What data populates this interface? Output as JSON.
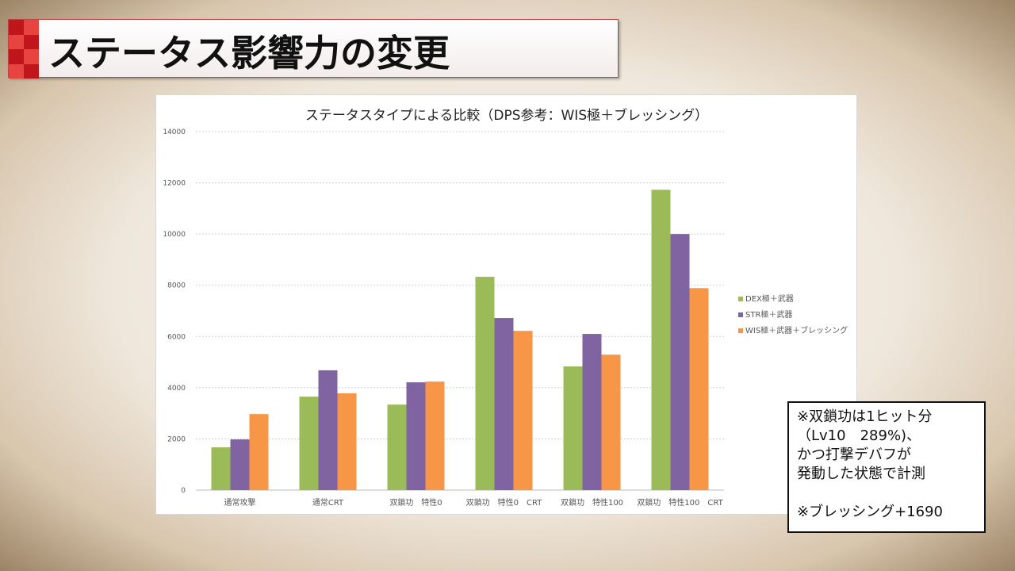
{
  "slide_title": "ステータス影響力の変更",
  "note": {
    "lines": [
      "※双鎖功は1ヒット分",
      "（Lv10　289%)、",
      "かつ打撃デバフが",
      "発動した状態で計測",
      "",
      "※ブレッシング+1690"
    ]
  },
  "chart_data": {
    "type": "bar",
    "title": "ステータスタイプによる比較（DPS参考：WIS極＋ブレッシング）",
    "categories": [
      "通常攻撃",
      "通常CRT",
      "双鎖功　特性0",
      "双鎖功　特性0　CRT",
      "双鎖功　特性100",
      "双鎖功　特性100　CRT"
    ],
    "series": [
      {
        "name": "DEX極＋武器",
        "color": "#9bbb59",
        "values": [
          1670,
          3650,
          3340,
          8330,
          4830,
          11730
        ]
      },
      {
        "name": "STR極＋武器",
        "color": "#8064a2",
        "values": [
          1980,
          4680,
          4210,
          6720,
          6100,
          10000
        ]
      },
      {
        "name": "WIS極＋武器＋ブレッシング",
        "color": "#f79646",
        "values": [
          2970,
          3780,
          4240,
          6220,
          5290,
          7890
        ]
      }
    ],
    "ylim": [
      0,
      14000
    ],
    "yticks": [
      0,
      2000,
      4000,
      6000,
      8000,
      10000,
      12000,
      14000
    ],
    "grid": true,
    "legend": "right"
  }
}
